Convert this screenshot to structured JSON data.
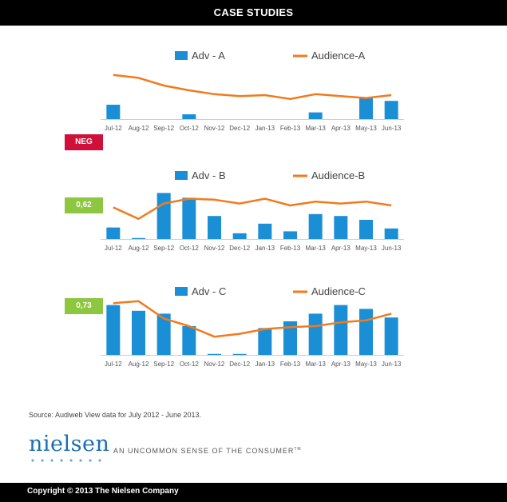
{
  "header": {
    "title": "CASE STUDIES"
  },
  "footer": {
    "copyright": "Copyright © 2013 The Nielsen Company"
  },
  "source": "Source: Audiweb View data for July 2012 - June 2013.",
  "logo": {
    "word": "nielsen",
    "tagline": "AN UNCOMMON SENSE OF THE CONSUMER",
    "tm": "TM"
  },
  "colors": {
    "bar": "#1b8fd6",
    "line": "#f07b1e",
    "neg": "#d0103a",
    "pos": "#8dc63f"
  },
  "chart_data": [
    {
      "type": "bar",
      "categories": [
        "Jul-12",
        "Aug-12",
        "Sep-12",
        "Oct-12",
        "Nov-12",
        "Dec-12",
        "Jan-13",
        "Feb-13",
        "Mar-13",
        "Apr-13",
        "May-13",
        "Jun-13"
      ],
      "series": [
        {
          "name": "Adv - A",
          "type": "bar",
          "values": [
            15,
            0,
            0,
            5,
            0,
            0,
            0,
            0,
            7,
            0,
            22,
            19
          ]
        },
        {
          "name": "Audience-A",
          "type": "line",
          "values": [
            46,
            43,
            35,
            30,
            26,
            24,
            25,
            21,
            26,
            24,
            22,
            25
          ]
        }
      ],
      "ylim": [
        0,
        60
      ],
      "badge": "NEG"
    },
    {
      "type": "bar",
      "categories": [
        "Jul-12",
        "Aug-12",
        "Sep-12",
        "Oct-12",
        "Nov-12",
        "Dec-12",
        "Jan-13",
        "Feb-13",
        "Mar-13",
        "Apr-13",
        "May-13",
        "Jun-13"
      ],
      "series": [
        {
          "name": "Adv - B",
          "type": "bar",
          "values": [
            12,
            1,
            48,
            43,
            24,
            6,
            16,
            8,
            26,
            24,
            20,
            11
          ]
        },
        {
          "name": "Audience-B",
          "type": "line",
          "values": [
            33,
            21,
            37,
            42,
            41,
            37,
            42,
            35,
            39,
            37,
            39,
            35
          ]
        }
      ],
      "ylim": [
        0,
        60
      ],
      "badge": "0,62"
    },
    {
      "type": "bar",
      "categories": [
        "Jul-12",
        "Aug-12",
        "Sep-12",
        "Oct-12",
        "Nov-12",
        "Dec-12",
        "Jan-13",
        "Feb-13",
        "Mar-13",
        "Apr-13",
        "May-13",
        "Jun-13"
      ],
      "series": [
        {
          "name": "Adv - C",
          "type": "bar",
          "values": [
            52,
            46,
            43,
            30,
            1,
            1,
            28,
            35,
            43,
            52,
            48,
            39
          ]
        },
        {
          "name": "Audience-C",
          "type": "line",
          "values": [
            54,
            56,
            38,
            30,
            19,
            22,
            27,
            29,
            30,
            34,
            36,
            43
          ]
        }
      ],
      "ylim": [
        0,
        60
      ],
      "badge": "0,73"
    }
  ]
}
